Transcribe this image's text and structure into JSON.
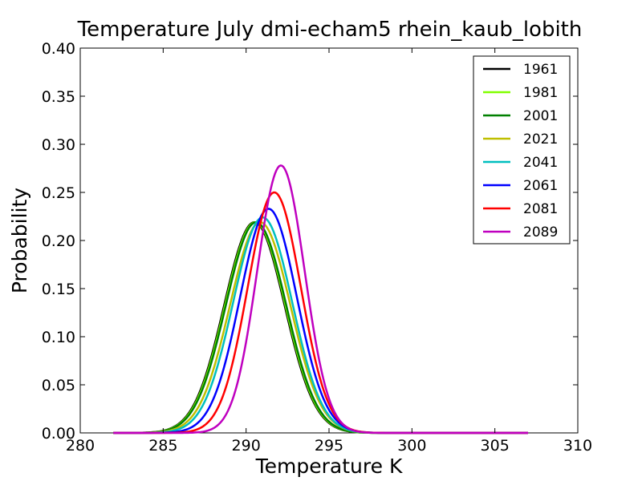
{
  "chart_data": {
    "type": "line",
    "title": "Temperature July dmi-echam5 rhein_kaub_lobith",
    "xlabel": "Temperature K",
    "ylabel": "Probability",
    "xlim": [
      280,
      310
    ],
    "ylim": [
      0,
      0.4
    ],
    "x_domain": [
      282,
      307
    ],
    "xticks": [
      "280",
      "285",
      "290",
      "295",
      "300",
      "305",
      "310"
    ],
    "yticks": [
      "0.00",
      "0.05",
      "0.10",
      "0.15",
      "0.20",
      "0.25",
      "0.30",
      "0.35",
      "0.40"
    ],
    "grid": false,
    "legend_position": "top-right",
    "series": [
      {
        "name": "1961",
        "color": "#000000",
        "distribution": "normal",
        "mean": 290.5,
        "std_dev": 1.82,
        "peak": 0.219
      },
      {
        "name": "1981",
        "color": "#80ff00",
        "distribution": "normal",
        "mean": 290.55,
        "std_dev": 1.82,
        "peak": 0.219
      },
      {
        "name": "2001",
        "color": "#008000",
        "distribution": "normal",
        "mean": 290.6,
        "std_dev": 1.82,
        "peak": 0.219
      },
      {
        "name": "2021",
        "color": "#bfbf00",
        "distribution": "normal",
        "mean": 290.85,
        "std_dev": 1.82,
        "peak": 0.219
      },
      {
        "name": "2041",
        "color": "#00bfbf",
        "distribution": "normal",
        "mean": 291.0,
        "std_dev": 1.78,
        "peak": 0.224
      },
      {
        "name": "2061",
        "color": "#0000ff",
        "distribution": "normal",
        "mean": 291.35,
        "std_dev": 1.71,
        "peak": 0.233
      },
      {
        "name": "2081",
        "color": "#ff0000",
        "distribution": "normal",
        "mean": 291.7,
        "std_dev": 1.6,
        "peak": 0.25
      },
      {
        "name": "2089",
        "color": "#bf00bf",
        "distribution": "normal",
        "mean": 292.1,
        "std_dev": 1.43,
        "peak": 0.278
      }
    ]
  }
}
